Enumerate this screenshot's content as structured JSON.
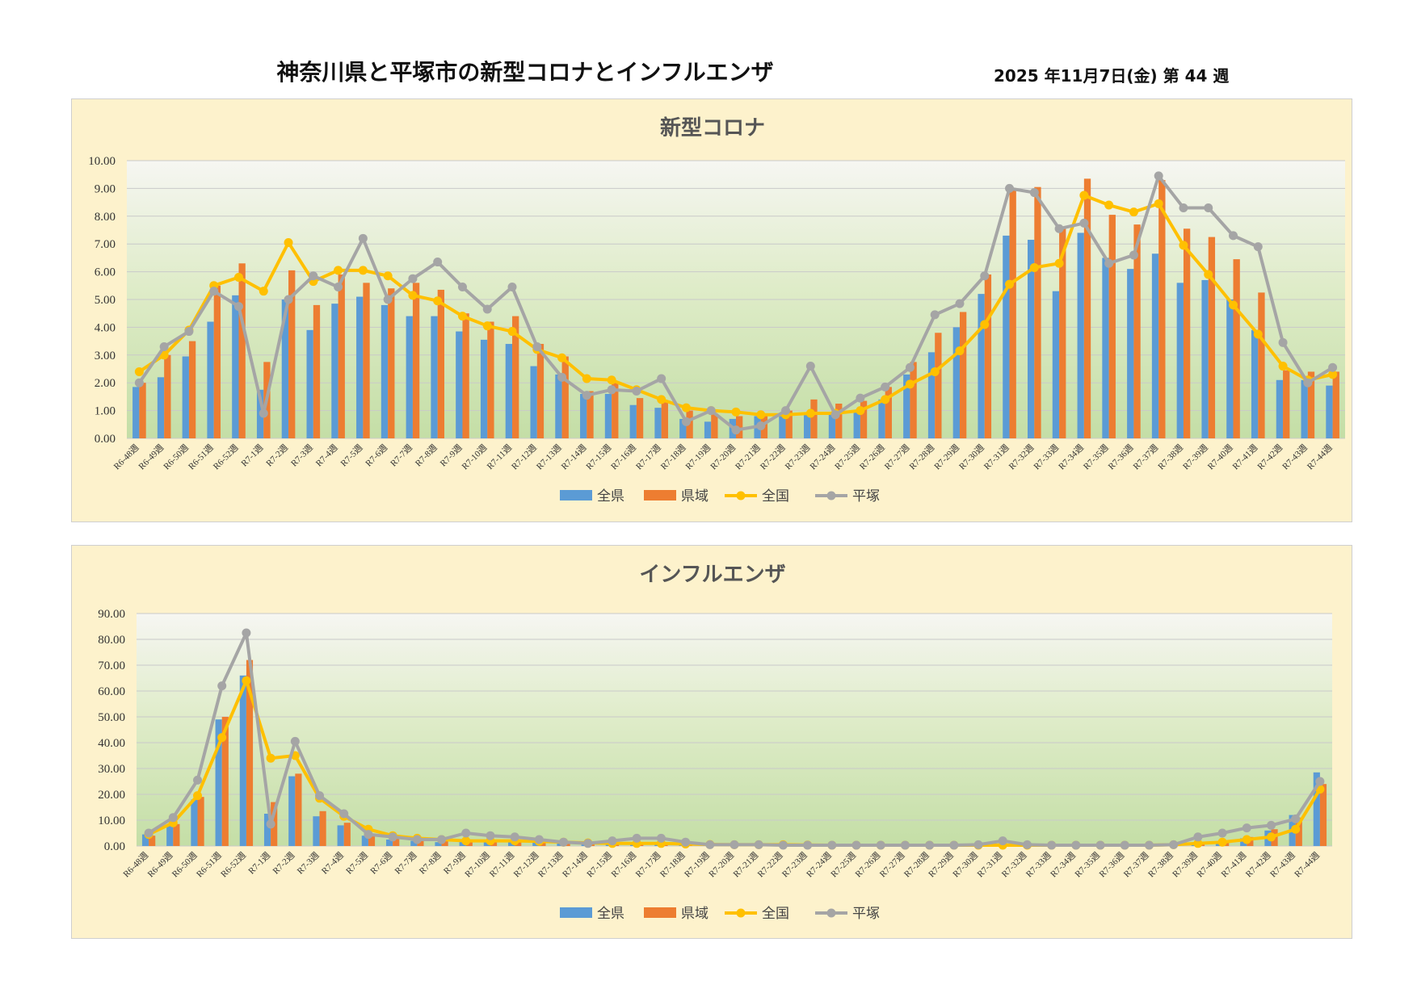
{
  "header": {
    "title": "神奈川県と平塚市の新型コロナとインフルエンザ",
    "date": "2025 年11月7日(金) 第 44 週"
  },
  "colors": {
    "zenken": "#5b9bd5",
    "kenmin": "#ed7d31",
    "zenkoku": "#ffc000",
    "hiratsuka": "#a5a5a5",
    "panel_bg": "#fdf2cc"
  },
  "chart_data": [
    {
      "type": "bar",
      "id": "covid",
      "title": "新型コロナ",
      "ylim": [
        0,
        10
      ],
      "ytick_step": 1,
      "categories": [
        "R6-48週",
        "R6-49週",
        "R6-50週",
        "R6-51週",
        "R6-52週",
        "R7-1週",
        "R7-2週",
        "R7-3週",
        "R7-4週",
        "R7-5週",
        "R7-6週",
        "R7-7週",
        "R7-8週",
        "R7-9週",
        "R7-10週",
        "R7-11週",
        "R7-12週",
        "R7-13週",
        "R7-14週",
        "R7-15週",
        "R7-16週",
        "R7-17週",
        "R7-18週",
        "R7-19週",
        "R7-20週",
        "R7-21週",
        "R7-22週",
        "R7-23週",
        "R7-24週",
        "R7-25週",
        "R7-26週",
        "R7-27週",
        "R7-28週",
        "R7-29週",
        "R7-30週",
        "R7-31週",
        "R7-32週",
        "R7-33週",
        "R7-34週",
        "R7-35週",
        "R7-36週",
        "R7-37週",
        "R7-38週",
        "R7-39週",
        "R7-40週",
        "R7-41週",
        "R7-42週",
        "R7-43週",
        "R7-44週"
      ],
      "series": [
        {
          "name": "全県",
          "kind": "bar",
          "values": [
            1.85,
            2.2,
            2.95,
            4.2,
            5.15,
            1.75,
            5.0,
            3.9,
            4.85,
            5.1,
            4.8,
            4.4,
            4.4,
            3.85,
            3.55,
            3.4,
            2.6,
            2.3,
            1.6,
            1.6,
            1.2,
            1.1,
            0.7,
            0.6,
            0.7,
            0.8,
            0.8,
            0.9,
            0.95,
            1.0,
            1.4,
            2.3,
            3.1,
            4.0,
            5.2,
            7.3,
            7.15,
            5.3,
            7.4,
            6.5,
            6.1,
            6.65,
            5.6,
            5.7,
            5.0,
            3.9,
            2.1,
            2.1,
            1.9
          ]
        },
        {
          "name": "県域",
          "kind": "bar",
          "values": [
            2.0,
            3.0,
            3.5,
            5.5,
            6.3,
            2.75,
            6.05,
            4.8,
            5.9,
            5.6,
            5.4,
            5.6,
            5.35,
            4.5,
            4.2,
            4.4,
            3.4,
            2.95,
            1.7,
            2.0,
            1.45,
            1.3,
            1.0,
            0.9,
            0.8,
            0.85,
            1.0,
            1.4,
            1.25,
            1.35,
            1.85,
            2.75,
            3.8,
            4.55,
            5.9,
            9.0,
            9.05,
            7.6,
            9.35,
            8.05,
            7.7,
            9.3,
            7.55,
            7.25,
            6.45,
            5.25,
            2.45,
            2.4,
            2.4
          ]
        },
        {
          "name": "全国",
          "kind": "line",
          "values": [
            2.4,
            3.0,
            3.9,
            5.5,
            5.8,
            5.3,
            7.05,
            5.65,
            6.05,
            6.05,
            5.85,
            5.15,
            4.95,
            4.4,
            4.05,
            3.85,
            3.2,
            2.9,
            2.15,
            2.1,
            1.75,
            1.4,
            1.1,
            1.0,
            0.95,
            0.85,
            0.85,
            0.9,
            0.9,
            1.0,
            1.4,
            1.95,
            2.4,
            3.15,
            4.1,
            5.55,
            6.15,
            6.3,
            8.75,
            8.4,
            8.15,
            8.45,
            6.95,
            5.9,
            4.8,
            3.75,
            2.6,
            2.1,
            2.3
          ]
        },
        {
          "name": "平塚",
          "kind": "line",
          "values": [
            2.0,
            3.3,
            3.85,
            5.3,
            4.75,
            0.9,
            5.0,
            5.85,
            5.45,
            7.2,
            5.0,
            5.75,
            6.35,
            5.45,
            4.65,
            5.45,
            3.3,
            2.2,
            1.55,
            1.75,
            1.7,
            2.15,
            0.6,
            1.0,
            0.3,
            0.45,
            1.0,
            2.6,
            0.85,
            1.45,
            1.85,
            2.55,
            4.45,
            4.85,
            5.85,
            9.0,
            8.85,
            7.55,
            7.75,
            6.3,
            6.6,
            9.45,
            8.3,
            8.3,
            7.3,
            6.9,
            3.45,
            2.0,
            2.55
          ]
        }
      ]
    },
    {
      "type": "bar",
      "id": "flu",
      "title": "インフルエンザ",
      "ylim": [
        0,
        90
      ],
      "ytick_step": 10,
      "categories": [
        "R6-48週",
        "R6-49週",
        "R6-50週",
        "R6-51週",
        "R6-52週",
        "R7-1週",
        "R7-2週",
        "R7-3週",
        "R7-4週",
        "R7-5週",
        "R7-6週",
        "R7-7週",
        "R7-8週",
        "R7-9週",
        "R7-10週",
        "R7-11週",
        "R7-12週",
        "R7-13週",
        "R7-14週",
        "R7-15週",
        "R7-16週",
        "R7-17週",
        "R7-18週",
        "R7-19週",
        "R7-20週",
        "R7-21週",
        "R7-22週",
        "R7-23週",
        "R7-24週",
        "R7-25週",
        "R7-26週",
        "R7-27週",
        "R7-28週",
        "R7-29週",
        "R7-30週",
        "R7-31週",
        "R7-32週",
        "R7-33週",
        "R7-34週",
        "R7-35週",
        "R7-36週",
        "R7-37週",
        "R7-38週",
        "R7-39週",
        "R7-40週",
        "R7-41週",
        "R7-42週",
        "R7-43週",
        "R7-44週"
      ],
      "series": [
        {
          "name": "全県",
          "kind": "bar",
          "values": [
            4.5,
            8.0,
            18.0,
            49.0,
            66.0,
            12.5,
            27.0,
            11.5,
            8.0,
            4.0,
            2.5,
            2.0,
            1.5,
            1.8,
            1.8,
            1.8,
            1.5,
            1.2,
            1.0,
            0.8,
            0.8,
            0.8,
            0.6,
            0.5,
            0.5,
            0.5,
            0.4,
            0.3,
            0.3,
            0.3,
            0.3,
            0.3,
            0.3,
            0.3,
            0.3,
            0.3,
            0.3,
            0.3,
            0.3,
            0.3,
            0.3,
            0.3,
            0.5,
            0.8,
            1.5,
            3.0,
            6.0,
            12.0,
            28.5
          ]
        },
        {
          "name": "県域",
          "kind": "bar",
          "values": [
            4.0,
            8.5,
            19.0,
            50.0,
            72.0,
            17.0,
            28.0,
            13.5,
            9.0,
            4.5,
            3.5,
            2.5,
            2.0,
            2.0,
            2.0,
            2.0,
            1.5,
            1.5,
            1.0,
            1.0,
            1.0,
            0.8,
            0.6,
            0.5,
            0.5,
            0.5,
            0.4,
            0.3,
            0.3,
            0.3,
            0.3,
            0.3,
            0.3,
            0.3,
            0.3,
            0.3,
            0.3,
            0.3,
            0.3,
            0.3,
            0.3,
            0.3,
            0.8,
            1.2,
            2.0,
            3.5,
            6.5,
            11.0,
            24.0
          ]
        },
        {
          "name": "全国",
          "kind": "line",
          "values": [
            4.5,
            9.0,
            19.5,
            42.0,
            64.0,
            34.0,
            35.0,
            18.5,
            11.5,
            6.5,
            4.0,
            3.0,
            2.5,
            2.0,
            2.0,
            2.0,
            1.8,
            1.5,
            1.2,
            1.0,
            1.0,
            1.0,
            0.8,
            0.6,
            0.5,
            0.5,
            0.5,
            0.4,
            0.3,
            0.3,
            0.3,
            0.3,
            0.3,
            0.3,
            0.3,
            0.3,
            0.3,
            0.3,
            0.3,
            0.3,
            0.3,
            0.3,
            0.5,
            1.0,
            1.5,
            2.5,
            3.5,
            6.5,
            22.0
          ]
        },
        {
          "name": "平塚",
          "kind": "line",
          "values": [
            5.0,
            11.0,
            25.5,
            62.0,
            82.5,
            8.5,
            40.5,
            19.5,
            12.5,
            4.5,
            3.5,
            2.5,
            2.5,
            5.0,
            4.0,
            3.5,
            2.5,
            1.5,
            1.0,
            2.0,
            3.0,
            3.0,
            1.5,
            0.5,
            0.5,
            0.5,
            0.3,
            0.3,
            0.3,
            0.3,
            0.3,
            0.3,
            0.3,
            0.3,
            0.5,
            2.0,
            0.5,
            0.3,
            0.3,
            0.3,
            0.3,
            0.3,
            0.5,
            3.5,
            5.0,
            7.0,
            8.0,
            10.5,
            25.0
          ]
        }
      ]
    }
  ]
}
